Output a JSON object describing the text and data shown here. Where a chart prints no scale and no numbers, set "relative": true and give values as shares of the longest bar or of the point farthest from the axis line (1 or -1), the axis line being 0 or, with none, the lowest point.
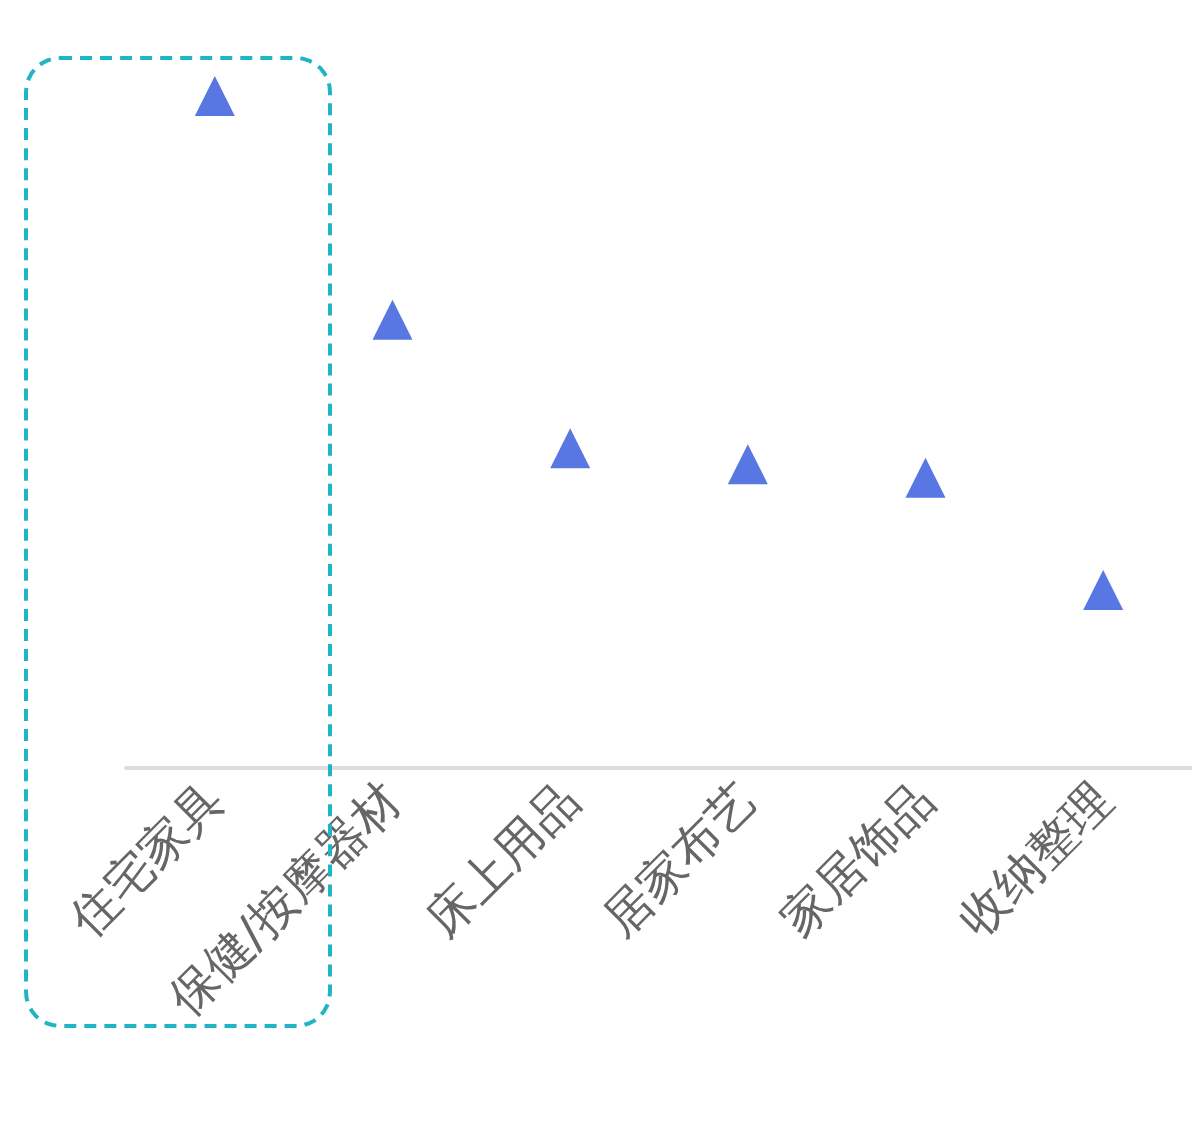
{
  "chart_data": {
    "type": "scatter",
    "relative": true,
    "marker": "triangle",
    "categories": [
      "住宅家具",
      "保健/按摩器材",
      "床上用品",
      "居家布艺",
      "家居饰品",
      "收纳整理"
    ],
    "series": [
      {
        "color": "#2e55dc",
        "values": [
          1,
          0.667,
          0.476,
          0.452,
          0.432,
          0.265
        ]
      }
    ]
  }
}
